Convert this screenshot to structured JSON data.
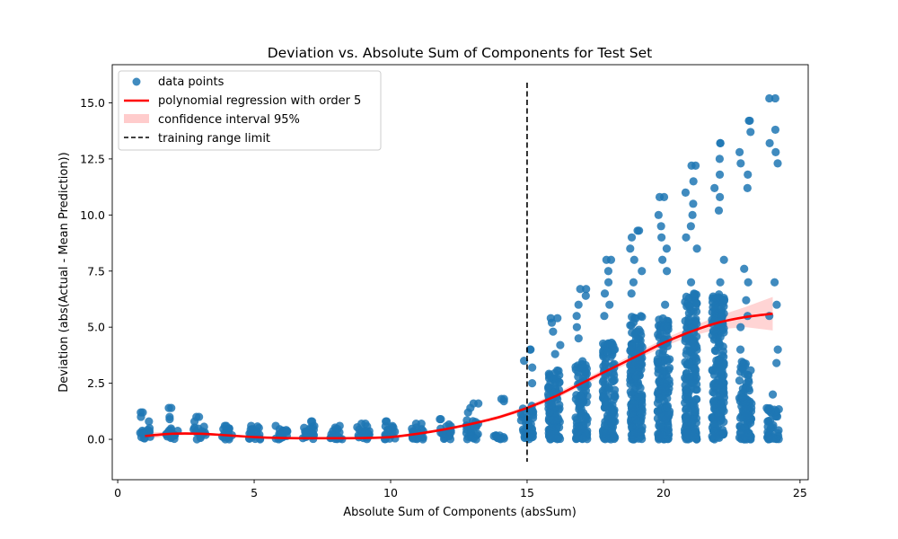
{
  "chart_data": {
    "type": "scatter",
    "title": "Deviation vs. Absolute Sum of Components for Test Set",
    "xlabel": "Absolute Sum of Components (absSum)",
    "ylabel": "Deviation (abs(Actual - Mean Prediction))",
    "xlim": [
      -0.2,
      25.3
    ],
    "ylim": [
      -1.8,
      16.7
    ],
    "x_ticks": [
      0,
      5,
      10,
      15,
      20,
      25
    ],
    "y_ticks": [
      0.0,
      2.5,
      5.0,
      7.5,
      10.0,
      12.5,
      15.0
    ],
    "grid": false,
    "legend_position": "top-left",
    "legend": [
      {
        "label": "data points",
        "color": "#1f77b4",
        "kind": "marker"
      },
      {
        "label": "polynomial regression with order 5",
        "color": "#ff0000",
        "kind": "line"
      },
      {
        "label": "confidence interval 95%",
        "color": "#ffcccc",
        "kind": "patch"
      },
      {
        "label": "training range limit",
        "color": "#000000",
        "kind": "dashed"
      }
    ],
    "reference_line": {
      "x": 15,
      "y_range": [
        -1.0,
        15.9
      ],
      "style": "dashed",
      "color": "#000000"
    },
    "point_color": "#1f77b4",
    "line_color": "#ff0000",
    "band_color": "#ffcccc",
    "columns": [
      {
        "x": 1,
        "max": 1.2,
        "dense": [
          0.0,
          0.5
        ],
        "outliers": [
          0.8,
          1.0,
          1.2
        ]
      },
      {
        "x": 2,
        "max": 1.4,
        "dense": [
          0.0,
          0.5
        ],
        "outliers": [
          0.9,
          1.0,
          1.4
        ]
      },
      {
        "x": 3,
        "max": 1.0,
        "dense": [
          0.0,
          0.6
        ],
        "outliers": [
          0.8,
          1.0
        ]
      },
      {
        "x": 4,
        "max": 0.6,
        "dense": [
          0.0,
          0.6
        ],
        "outliers": []
      },
      {
        "x": 5,
        "max": 0.6,
        "dense": [
          0.0,
          0.6
        ],
        "outliers": []
      },
      {
        "x": 6,
        "max": 0.6,
        "dense": [
          0.0,
          0.6
        ],
        "outliers": []
      },
      {
        "x": 7,
        "max": 0.8,
        "dense": [
          0.0,
          0.6
        ],
        "outliers": [
          0.8
        ]
      },
      {
        "x": 8,
        "max": 0.6,
        "dense": [
          0.0,
          0.6
        ],
        "outliers": []
      },
      {
        "x": 9,
        "max": 0.7,
        "dense": [
          0.0,
          0.6
        ],
        "outliers": [
          0.7
        ]
      },
      {
        "x": 10,
        "max": 0.8,
        "dense": [
          0.0,
          0.6
        ],
        "outliers": [
          0.8
        ]
      },
      {
        "x": 11,
        "max": 0.7,
        "dense": [
          0.0,
          0.6
        ],
        "outliers": [
          0.7
        ]
      },
      {
        "x": 12,
        "max": 0.9,
        "dense": [
          0.0,
          0.7
        ],
        "outliers": [
          0.9
        ]
      },
      {
        "x": 13,
        "max": 1.6,
        "dense": [
          0.0,
          0.9
        ],
        "outliers": [
          1.2,
          1.4,
          1.6
        ]
      },
      {
        "x": 14,
        "max": 1.8,
        "dense": [
          0.0,
          0.2
        ],
        "outliers": [
          1.7,
          1.8
        ]
      },
      {
        "x": 15,
        "max": 4.0,
        "dense": [
          0.0,
          1.5
        ],
        "outliers": [
          2.5,
          3.2,
          3.5,
          4.0
        ]
      },
      {
        "x": 16,
        "max": 5.4,
        "dense": [
          0.0,
          3.2
        ],
        "outliers": [
          3.8,
          4.2,
          4.8,
          5.2,
          5.4
        ]
      },
      {
        "x": 17,
        "max": 6.7,
        "dense": [
          0.0,
          3.5
        ],
        "outliers": [
          4.5,
          5.0,
          5.5,
          6.0,
          6.4,
          6.7
        ]
      },
      {
        "x": 18,
        "max": 8.0,
        "dense": [
          0.0,
          4.5
        ],
        "outliers": [
          5.5,
          6.0,
          6.5,
          7.0,
          7.5,
          8.0
        ]
      },
      {
        "x": 19,
        "max": 9.3,
        "dense": [
          0.0,
          5.5
        ],
        "outliers": [
          6.5,
          7.0,
          7.5,
          8.0,
          8.5,
          9.0,
          9.3
        ]
      },
      {
        "x": 20,
        "max": 10.8,
        "dense": [
          0.0,
          5.5
        ],
        "outliers": [
          6.0,
          7.5,
          8.0,
          8.5,
          9.0,
          9.5,
          10.0,
          10.8
        ]
      },
      {
        "x": 21,
        "max": 12.2,
        "dense": [
          0.0,
          6.5
        ],
        "outliers": [
          7.0,
          8.5,
          9.0,
          9.5,
          10.0,
          10.5,
          11.0,
          11.5,
          12.2
        ]
      },
      {
        "x": 22,
        "max": 13.2,
        "dense": [
          0.0,
          6.5
        ],
        "outliers": [
          7.0,
          8.0,
          10.2,
          10.8,
          11.2,
          11.8,
          12.5,
          13.2
        ]
      },
      {
        "x": 23,
        "max": 14.2,
        "dense": [
          0.0,
          3.5
        ],
        "outliers": [
          4.0,
          5.0,
          5.5,
          6.2,
          7.0,
          7.6,
          11.2,
          11.8,
          12.3,
          12.8,
          13.7,
          14.2
        ]
      },
      {
        "x": 24,
        "max": 15.2,
        "dense": [
          0.0,
          1.5
        ],
        "outliers": [
          2.0,
          3.4,
          4.0,
          5.5,
          6.0,
          7.0,
          12.3,
          12.8,
          13.2,
          13.8,
          15.2
        ]
      }
    ],
    "regression_line": {
      "x": [
        1,
        2,
        3,
        4,
        5,
        6,
        7,
        8,
        9,
        10,
        11,
        12,
        13,
        14,
        15,
        16,
        17,
        18,
        19,
        20,
        21,
        22,
        23,
        24
      ],
      "y": [
        0.15,
        0.25,
        0.25,
        0.18,
        0.1,
        0.06,
        0.05,
        0.05,
        0.06,
        0.1,
        0.25,
        0.45,
        0.7,
        1.0,
        1.4,
        1.9,
        2.5,
        3.1,
        3.7,
        4.3,
        4.8,
        5.2,
        5.45,
        5.6
      ],
      "ci_halfwidth": [
        0.15,
        0.08,
        0.06,
        0.05,
        0.05,
        0.05,
        0.05,
        0.05,
        0.05,
        0.05,
        0.06,
        0.06,
        0.07,
        0.08,
        0.1,
        0.12,
        0.13,
        0.14,
        0.15,
        0.17,
        0.2,
        0.3,
        0.45,
        0.75
      ]
    }
  }
}
